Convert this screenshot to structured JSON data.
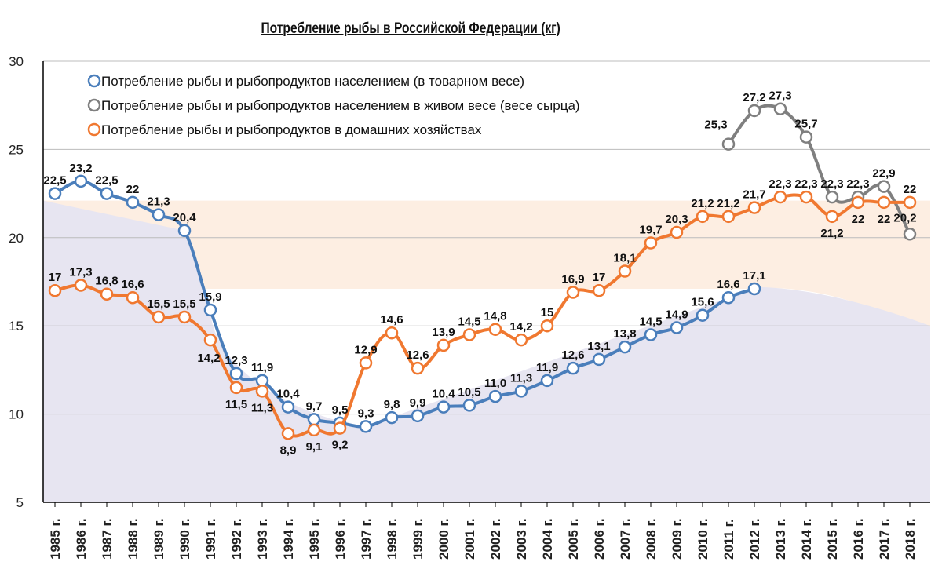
{
  "chart_data": {
    "type": "line",
    "title": "Потребление рыбы в Российской Федерации (кг)",
    "xlabel": "",
    "ylabel": "",
    "ylim": [
      5,
      30
    ],
    "yticks": [
      "5",
      "10",
      "15",
      "20",
      "25",
      "30"
    ],
    "grid": true,
    "legend_position": "top-left",
    "categories": [
      "1985 г.",
      "1986 г.",
      "1987 г.",
      "1988 г.",
      "1989 г.",
      "1990 г.",
      "1991 г.",
      "1992 г.",
      "1993 г.",
      "1994 г.",
      "1995 г.",
      "1996 г.",
      "1997 г.",
      "1998 г.",
      "1999 г.",
      "2000 г.",
      "2001 г.",
      "2002 г.",
      "2003 г.",
      "2004 г.",
      "2005 г.",
      "2006 г.",
      "2007 г.",
      "2008 г.",
      "2009 г.",
      "2010 г.",
      "2011 г.",
      "2012 г.",
      "2013 г.",
      "2014 г.",
      "2015 г.",
      "2016 г.",
      "2017 г.",
      "2018 г."
    ],
    "series": [
      {
        "name": "Потребление рыбы и рыбопродуктов населением (в товарном весе)",
        "color": "#4a7ebb",
        "values": [
          22.5,
          23.2,
          22.5,
          22,
          21.3,
          20.4,
          15.9,
          12.3,
          11.9,
          10.4,
          9.7,
          9.5,
          9.3,
          9.8,
          9.9,
          10.4,
          10.5,
          11.0,
          11.3,
          11.9,
          12.6,
          13.1,
          13.8,
          14.5,
          14.9,
          15.6,
          16.6,
          17.1,
          null,
          null,
          null,
          null,
          null,
          null
        ],
        "labels": [
          "22,5",
          "23,2",
          "22,5",
          "22",
          "21,3",
          "20,4",
          "15,9",
          "12,3",
          "11,9",
          "10,4",
          "9,7",
          "9,5",
          "9,3",
          "9,8",
          "9,9",
          "10,4",
          "10,5",
          "11,0",
          "11,3",
          "11,9",
          "12,6",
          "13,1",
          "13,8",
          "14,5",
          "14,9",
          "15,6",
          "16,6",
          "17,1",
          "",
          "",
          "",
          "",
          "",
          ""
        ]
      },
      {
        "name": "Потребление рыбы и рыбопродуктов населением в живом весе (весе сырца)",
        "color": "#7f7f7f",
        "values": [
          null,
          null,
          null,
          null,
          null,
          null,
          null,
          null,
          null,
          null,
          null,
          null,
          null,
          null,
          null,
          null,
          null,
          null,
          null,
          null,
          null,
          null,
          null,
          null,
          null,
          null,
          25.3,
          27.2,
          27.3,
          25.7,
          22.3,
          22.3,
          22.9,
          20.2
        ],
        "labels": [
          "",
          "",
          "",
          "",
          "",
          "",
          "",
          "",
          "",
          "",
          "",
          "",
          "",
          "",
          "",
          "",
          "",
          "",
          "",
          "",
          "",
          "",
          "",
          "",
          "",
          "",
          "25,3",
          "27,2",
          "27,3",
          "25,7",
          "22,3",
          "22,3",
          "22,9",
          "20,2"
        ]
      },
      {
        "name": "Потребление рыбы и рыбопродуктов в домашних хозяйствах",
        "color": "#f07830",
        "values": [
          17,
          17.3,
          16.8,
          16.6,
          15.5,
          15.5,
          14.2,
          11.5,
          11.3,
          8.9,
          9.1,
          9.2,
          12.9,
          14.6,
          12.6,
          13.9,
          14.5,
          14.8,
          14.2,
          15,
          16.9,
          17,
          18.1,
          19.7,
          20.3,
          21.2,
          21.2,
          21.7,
          22.3,
          22.3,
          21.2,
          22,
          22,
          22
        ],
        "labels": [
          "17",
          "17,3",
          "16,8",
          "16,6",
          "15,5",
          "15,5",
          "14,2",
          "11,5",
          "11,3",
          "8,9",
          "9,1",
          "9,2",
          "12,9",
          "14,6",
          "12,6",
          "13,9",
          "14,5",
          "14,8",
          "14,2",
          "15",
          "16,9",
          "17",
          "18,1",
          "19,7",
          "20,3",
          "21,2",
          "21,2",
          "21,7",
          "22,3",
          "22,3",
          "21,2",
          "22",
          "22",
          "22"
        ]
      }
    ]
  }
}
